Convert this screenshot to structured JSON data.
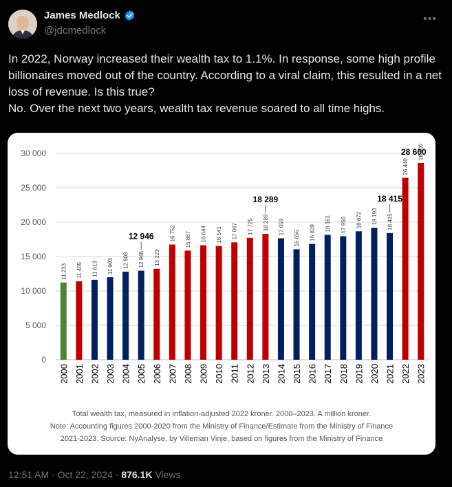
{
  "tweet": {
    "display_name": "James Medlock",
    "handle": "@jdcmedlock",
    "more_icon": "•••",
    "text": [
      "In 2022, Norway increased their wealth tax to 1.1%. In response, some high profile billionaires moved out of the country. According to a viral claim, this resulted in a net loss of revenue. Is this true?",
      "No. Over the next two years, wealth tax revenue soared to all time highs."
    ],
    "time": "12:51 AM · Oct 22, 2024 ·",
    "views_count": "876.1K",
    "views_label": "Views"
  },
  "chart_data": {
    "type": "bar",
    "categories": [
      "2000",
      "2001",
      "2002",
      "2003",
      "2004",
      "2005",
      "2006",
      "2007",
      "2008",
      "2009",
      "2010",
      "2011",
      "2012",
      "2013",
      "2014",
      "2015",
      "2016",
      "2017",
      "2018",
      "2019",
      "2020",
      "2021",
      "2022",
      "2023"
    ],
    "values": [
      11233,
      11405,
      11613,
      11993,
      12808,
      12946,
      13223,
      16752,
      15867,
      16644,
      16541,
      17067,
      17725,
      18289,
      17659,
      16056,
      16839,
      18161,
      17956,
      18672,
      19193,
      18415,
      26440,
      28600
    ],
    "value_labels": [
      "11 233",
      "11 405",
      "11 613",
      "11 993",
      "12 808",
      "12 946",
      "13 223",
      "16 752",
      "15 867",
      "16 644",
      "16 541",
      "17 067",
      "17 725",
      "18 289",
      "17 659",
      "16 056",
      "16 839",
      "18 161",
      "17 956",
      "18 672",
      "19 193",
      "18 415",
      "26 440",
      "28 600"
    ],
    "bar_colors": [
      "#548235",
      "#c00000",
      "#002060",
      "#002060",
      "#002060",
      "#002060",
      "#c00000",
      "#c00000",
      "#c00000",
      "#c00000",
      "#c00000",
      "#c00000",
      "#c00000",
      "#c00000",
      "#002060",
      "#002060",
      "#002060",
      "#002060",
      "#002060",
      "#002060",
      "#002060",
      "#002060",
      "#c00000",
      "#c00000"
    ],
    "callouts": [
      {
        "index": 5,
        "label": "12 946"
      },
      {
        "index": 13,
        "label": "18 289"
      },
      {
        "index": 21,
        "label": "18 415"
      },
      {
        "index": 23,
        "label": "28 600"
      }
    ],
    "ylim": [
      0,
      30000
    ],
    "yticks": [
      0,
      5000,
      10000,
      15000,
      20000,
      25000,
      30000
    ],
    "ytick_labels": [
      "0",
      "5 000",
      "10 000",
      "15 000",
      "20 000",
      "25 000",
      "30 000"
    ],
    "grid": true,
    "legend": "none",
    "caption": [
      "Total wealth tax, measured in inflation-adjusted 2022 kroner. 2000–2023. A million kroner.",
      "Note: Accounting figures 2000-2020 from the Ministry of Finance/Estimate from the Ministry of Finance",
      "2021-2023. Source: NyAnalyse, by Villeman Vinje, based on figures from the Ministry of Finance"
    ]
  }
}
